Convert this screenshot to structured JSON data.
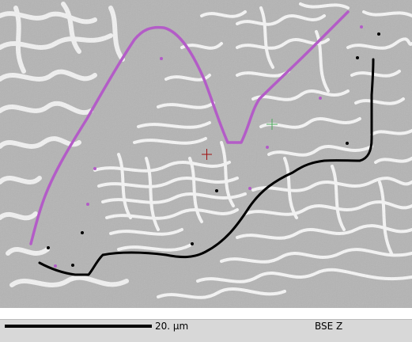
{
  "status": {
    "scale_label": "20. µm",
    "mode_label": "BSE Z"
  },
  "colors": {
    "background_gray": "#b4b4b4",
    "lamella_light": "#f4f4f4",
    "trace_purple": "#b35cc7",
    "trace_black": "#000000",
    "cursor_red": "#a01010",
    "cursor_green": "#4aa85a"
  }
}
